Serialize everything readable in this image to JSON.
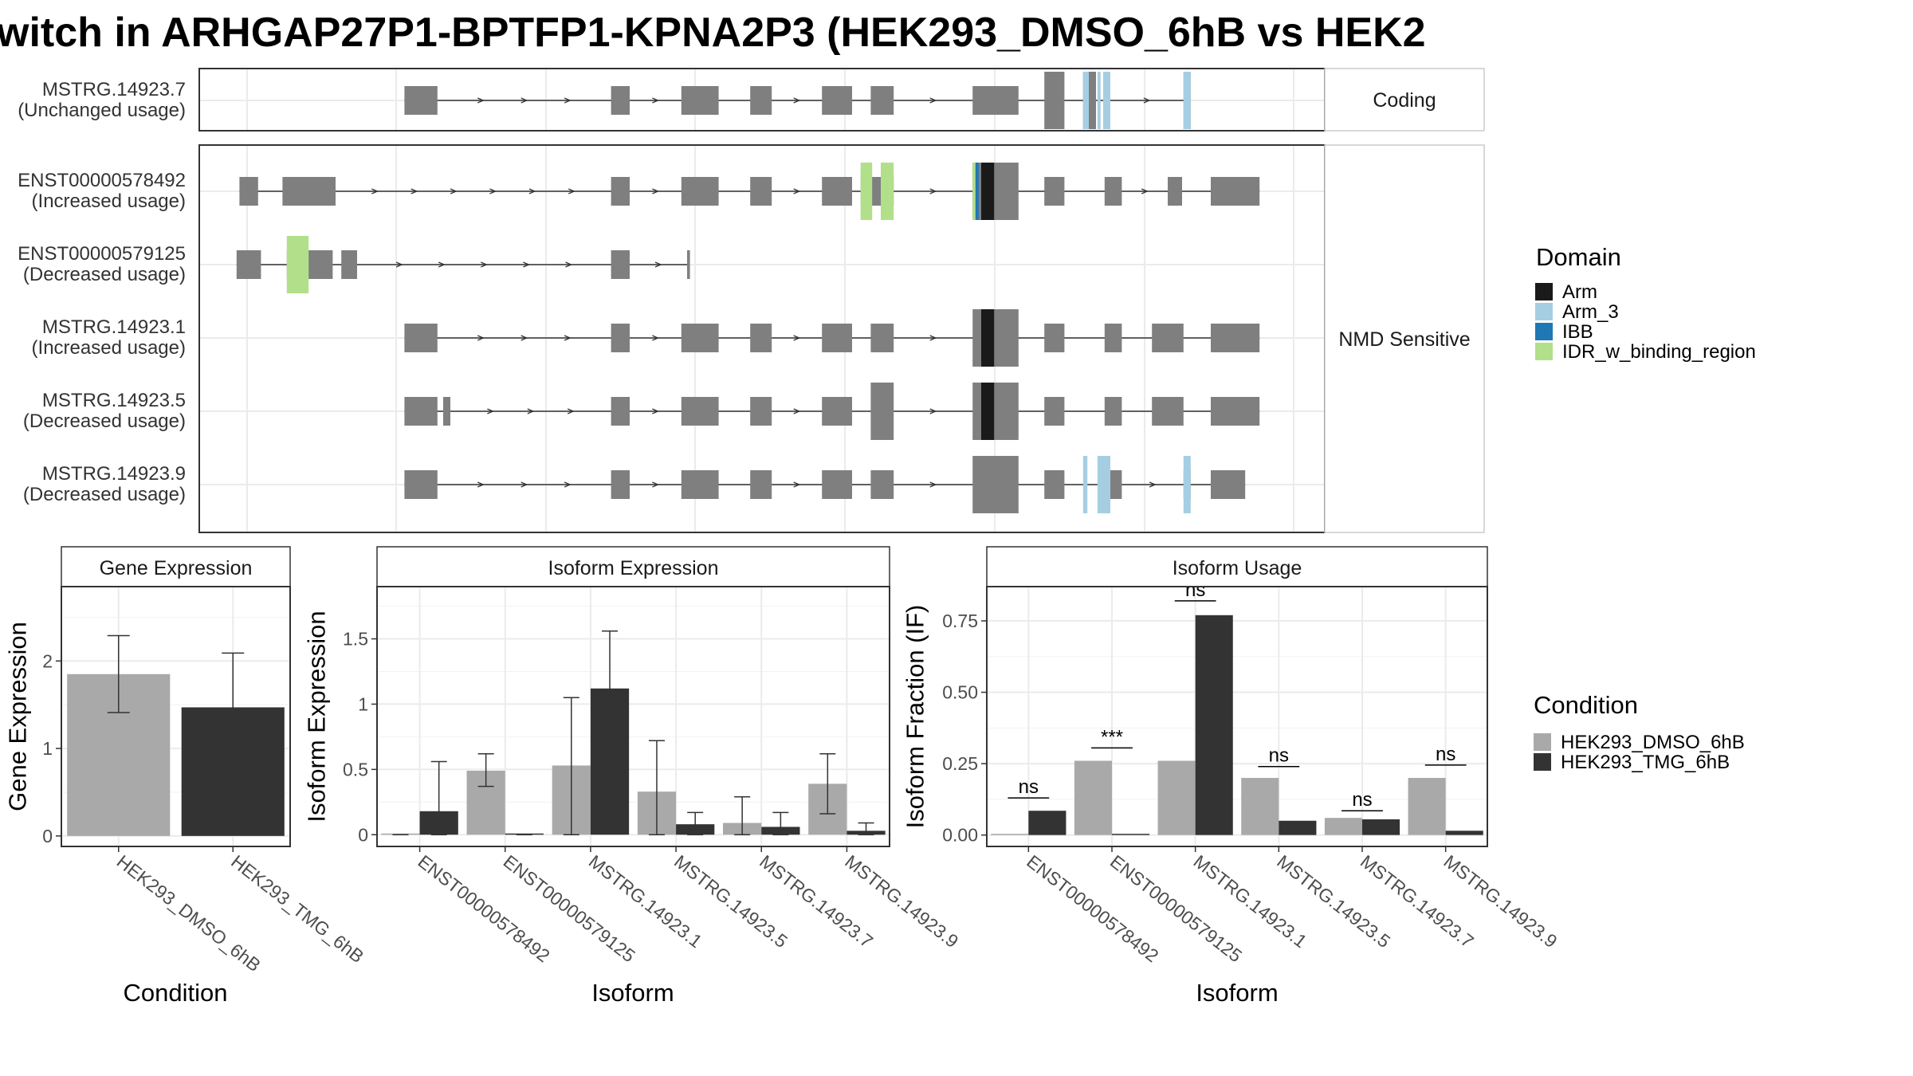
{
  "title": "witch in ARHGAP27P1-BPTFP1-KPNA2P3 (HEK293_DMSO_6hB vs HEK2",
  "colors": {
    "exon": "#7f7f7f",
    "intron": "#333333",
    "grid": "#ebebeb",
    "border": "#333333",
    "strip_bg": "#ffffff",
    "dmso": "#a9a9a9",
    "tmg": "#333333",
    "Arm": "#1a1a1a",
    "Arm_3": "#a6cee3",
    "IBB": "#1f78b4",
    "IDR_w_binding_region": "#b2df8a"
  },
  "structure": {
    "panels": [
      {
        "strip": "Coding",
        "isoforms": [
          {
            "name": "MSTRG.14923.7",
            "usage": "(Unchanged usage)",
            "exons": [
              [
                283,
                306,
                "s"
              ],
              [
                427,
                440,
                "s"
              ],
              [
                476,
                502,
                "s"
              ],
              [
                524,
                539,
                "s"
              ],
              [
                574,
                595,
                "s"
              ],
              [
                608,
                624,
                "s"
              ],
              [
                679,
                711,
                "s"
              ],
              [
                729,
                743,
                "t"
              ],
              [
                756,
                765,
                "t"
              ],
              [
                770,
                775,
                "t"
              ],
              [
                826,
                831,
                "t"
              ]
            ],
            "domains": [
              [
                756,
                760,
                "Arm_3",
                "t"
              ],
              [
                766,
                766,
                "Arm_3",
                "t"
              ],
              [
                770,
                775,
                "Arm_3",
                "t"
              ],
              [
                826,
                831,
                "Arm_3",
                "t"
              ]
            ]
          }
        ]
      },
      {
        "strip": "NMD Sensitive",
        "isoforms": [
          {
            "name": "ENST00000578492",
            "usage": "(Increased usage)",
            "exons": [
              [
                168,
                181,
                "s"
              ],
              [
                198,
                235,
                "s"
              ],
              [
                427,
                440,
                "s"
              ],
              [
                476,
                502,
                "s"
              ],
              [
                524,
                539,
                "s"
              ],
              [
                574,
                595,
                "s"
              ],
              [
                601,
                624,
                "s"
              ],
              [
                679,
                711,
                "t"
              ],
              [
                729,
                743,
                "s"
              ],
              [
                771,
                783,
                "s"
              ],
              [
                815,
                825,
                "s"
              ],
              [
                845,
                879,
                "s"
              ]
            ],
            "domains": [
              [
                601,
                601,
                "IDR_w_binding_region",
                "t"
              ],
              [
                601,
                609,
                "IDR_w_binding_region",
                "t"
              ],
              [
                615,
                624,
                "IDR_w_binding_region",
                "t"
              ],
              [
                679,
                681,
                "IDR_w_binding_region",
                "t"
              ],
              [
                681,
                682,
                "IBB",
                "t"
              ],
              [
                685,
                694,
                "Arm",
                "t"
              ]
            ]
          },
          {
            "name": "ENST00000579125",
            "usage": "(Decreased usage)",
            "exons": [
              [
                166,
                183,
                "s"
              ],
              [
                201,
                233,
                "s"
              ],
              [
                239,
                250,
                "s"
              ],
              [
                427,
                440,
                "s"
              ],
              [
                480,
                482,
                "s"
              ]
            ],
            "domains": [
              [
                201,
                215,
                "IDR_w_binding_region",
                "t"
              ],
              [
                214,
                215,
                "IDR_w_binding_region",
                "t"
              ]
            ]
          },
          {
            "name": "MSTRG.14923.1",
            "usage": "(Increased usage)",
            "exons": [
              [
                283,
                306,
                "s"
              ],
              [
                427,
                440,
                "s"
              ],
              [
                476,
                502,
                "s"
              ],
              [
                524,
                539,
                "s"
              ],
              [
                574,
                595,
                "s"
              ],
              [
                608,
                624,
                "s"
              ],
              [
                679,
                711,
                "t"
              ],
              [
                729,
                743,
                "s"
              ],
              [
                771,
                783,
                "s"
              ],
              [
                804,
                826,
                "s"
              ],
              [
                845,
                879,
                "s"
              ]
            ],
            "domains": [
              [
                685,
                694,
                "Arm",
                "t"
              ]
            ]
          },
          {
            "name": "MSTRG.14923.5",
            "usage": "(Decreased usage)",
            "exons": [
              [
                283,
                306,
                "s"
              ],
              [
                310,
                315,
                "s"
              ],
              [
                427,
                440,
                "s"
              ],
              [
                476,
                502,
                "s"
              ],
              [
                524,
                539,
                "s"
              ],
              [
                574,
                595,
                "s"
              ],
              [
                608,
                624,
                "t"
              ],
              [
                679,
                711,
                "t"
              ],
              [
                729,
                743,
                "s"
              ],
              [
                771,
                783,
                "s"
              ],
              [
                804,
                826,
                "s"
              ],
              [
                845,
                879,
                "s"
              ]
            ],
            "domains": [
              [
                685,
                694,
                "Arm",
                "t"
              ]
            ]
          },
          {
            "name": "MSTRG.14923.9",
            "usage": "(Decreased usage)",
            "exons": [
              [
                283,
                306,
                "s"
              ],
              [
                427,
                440,
                "s"
              ],
              [
                476,
                502,
                "s"
              ],
              [
                524,
                539,
                "s"
              ],
              [
                574,
                595,
                "s"
              ],
              [
                608,
                624,
                "s"
              ],
              [
                679,
                711,
                "t"
              ],
              [
                729,
                743,
                "s"
              ],
              [
                771,
                783,
                "s"
              ],
              [
                826,
                831,
                "s"
              ],
              [
                845,
                869,
                "s"
              ]
            ],
            "domains": [
              [
                756,
                759,
                "Arm_3",
                "t"
              ],
              [
                766,
                775,
                "Arm_3",
                "t"
              ],
              [
                770,
                775,
                "Arm_3",
                "t"
              ],
              [
                826,
                831,
                "Arm_3",
                "t"
              ]
            ]
          }
        ]
      }
    ],
    "domain_legend": {
      "title": "Domain",
      "items": [
        "Arm",
        "Arm_3",
        "IBB",
        "IDR_w_binding_region"
      ]
    }
  },
  "chart_data": [
    {
      "type": "bar",
      "strip": "Gene Expression",
      "xlabel": "Condition",
      "ylabel": "Gene Expression",
      "categories": [
        "HEK293_DMSO_6hB",
        "HEK293_TMG_6hB"
      ],
      "values": [
        1.85,
        1.47
      ],
      "errors": [
        [
          1.41,
          2.29
        ],
        [
          0.87,
          2.09
        ]
      ],
      "ylim": [
        -0.12,
        2.85
      ],
      "yticks": [
        0,
        1,
        2
      ],
      "grid": true
    },
    {
      "type": "bar",
      "strip": "Isoform Expression",
      "xlabel": "Isoform",
      "ylabel": "Isoform Expression",
      "categories": [
        "ENST00000578492",
        "ENST00000579125",
        "MSTRG.14923.1",
        "MSTRG.14923.5",
        "MSTRG.14923.7",
        "MSTRG.14923.9"
      ],
      "series": [
        {
          "name": "HEK293_DMSO_6hB",
          "values": [
            0.0,
            0.49,
            0.53,
            0.33,
            0.09,
            0.39
          ],
          "errors": [
            [
              0.0,
              0.0
            ],
            [
              0.37,
              0.62
            ],
            [
              0.0,
              1.05
            ],
            [
              0.0,
              0.72
            ],
            [
              0.0,
              0.29
            ],
            [
              0.16,
              0.62
            ]
          ]
        },
        {
          "name": "HEK293_TMG_6hB",
          "values": [
            0.18,
            0.0,
            1.12,
            0.08,
            0.06,
            0.03
          ],
          "errors": [
            [
              0.0,
              0.56
            ],
            [
              0.0,
              0.0
            ],
            [
              0.67,
              1.56
            ],
            [
              0.0,
              0.17
            ],
            [
              0.0,
              0.17
            ],
            [
              0.0,
              0.09
            ]
          ]
        }
      ],
      "ylim": [
        -0.09,
        1.9
      ],
      "yticks": [
        0.0,
        0.5,
        1.0,
        1.5
      ],
      "grid": true
    },
    {
      "type": "bar",
      "strip": "Isoform Usage",
      "xlabel": "Isoform",
      "ylabel": "Isoform Fraction (IF)",
      "categories": [
        "ENST00000578492",
        "ENST00000579125",
        "MSTRG.14923.1",
        "MSTRG.14923.5",
        "MSTRG.14923.7",
        "MSTRG.14923.9"
      ],
      "series": [
        {
          "name": "HEK293_DMSO_6hB",
          "values": [
            0.0,
            0.26,
            0.26,
            0.2,
            0.06,
            0.2
          ]
        },
        {
          "name": "HEK293_TMG_6hB",
          "values": [
            0.085,
            0.0,
            0.77,
            0.05,
            0.055,
            0.015
          ]
        }
      ],
      "annotations": [
        "ns",
        "***",
        "ns",
        "ns",
        "ns",
        "ns"
      ],
      "annotation_y": [
        0.13,
        0.305,
        0.82,
        0.24,
        0.085,
        0.245
      ],
      "ylim": [
        -0.04,
        0.87
      ],
      "yticks": [
        0.0,
        0.25,
        0.5,
        0.75
      ],
      "ytick_labels": [
        "0.00",
        "0.25",
        "0.50",
        "0.75"
      ],
      "grid": true
    }
  ],
  "condition_legend": {
    "title": "Condition",
    "items": [
      "HEK293_DMSO_6hB",
      "HEK293_TMG_6hB"
    ]
  }
}
